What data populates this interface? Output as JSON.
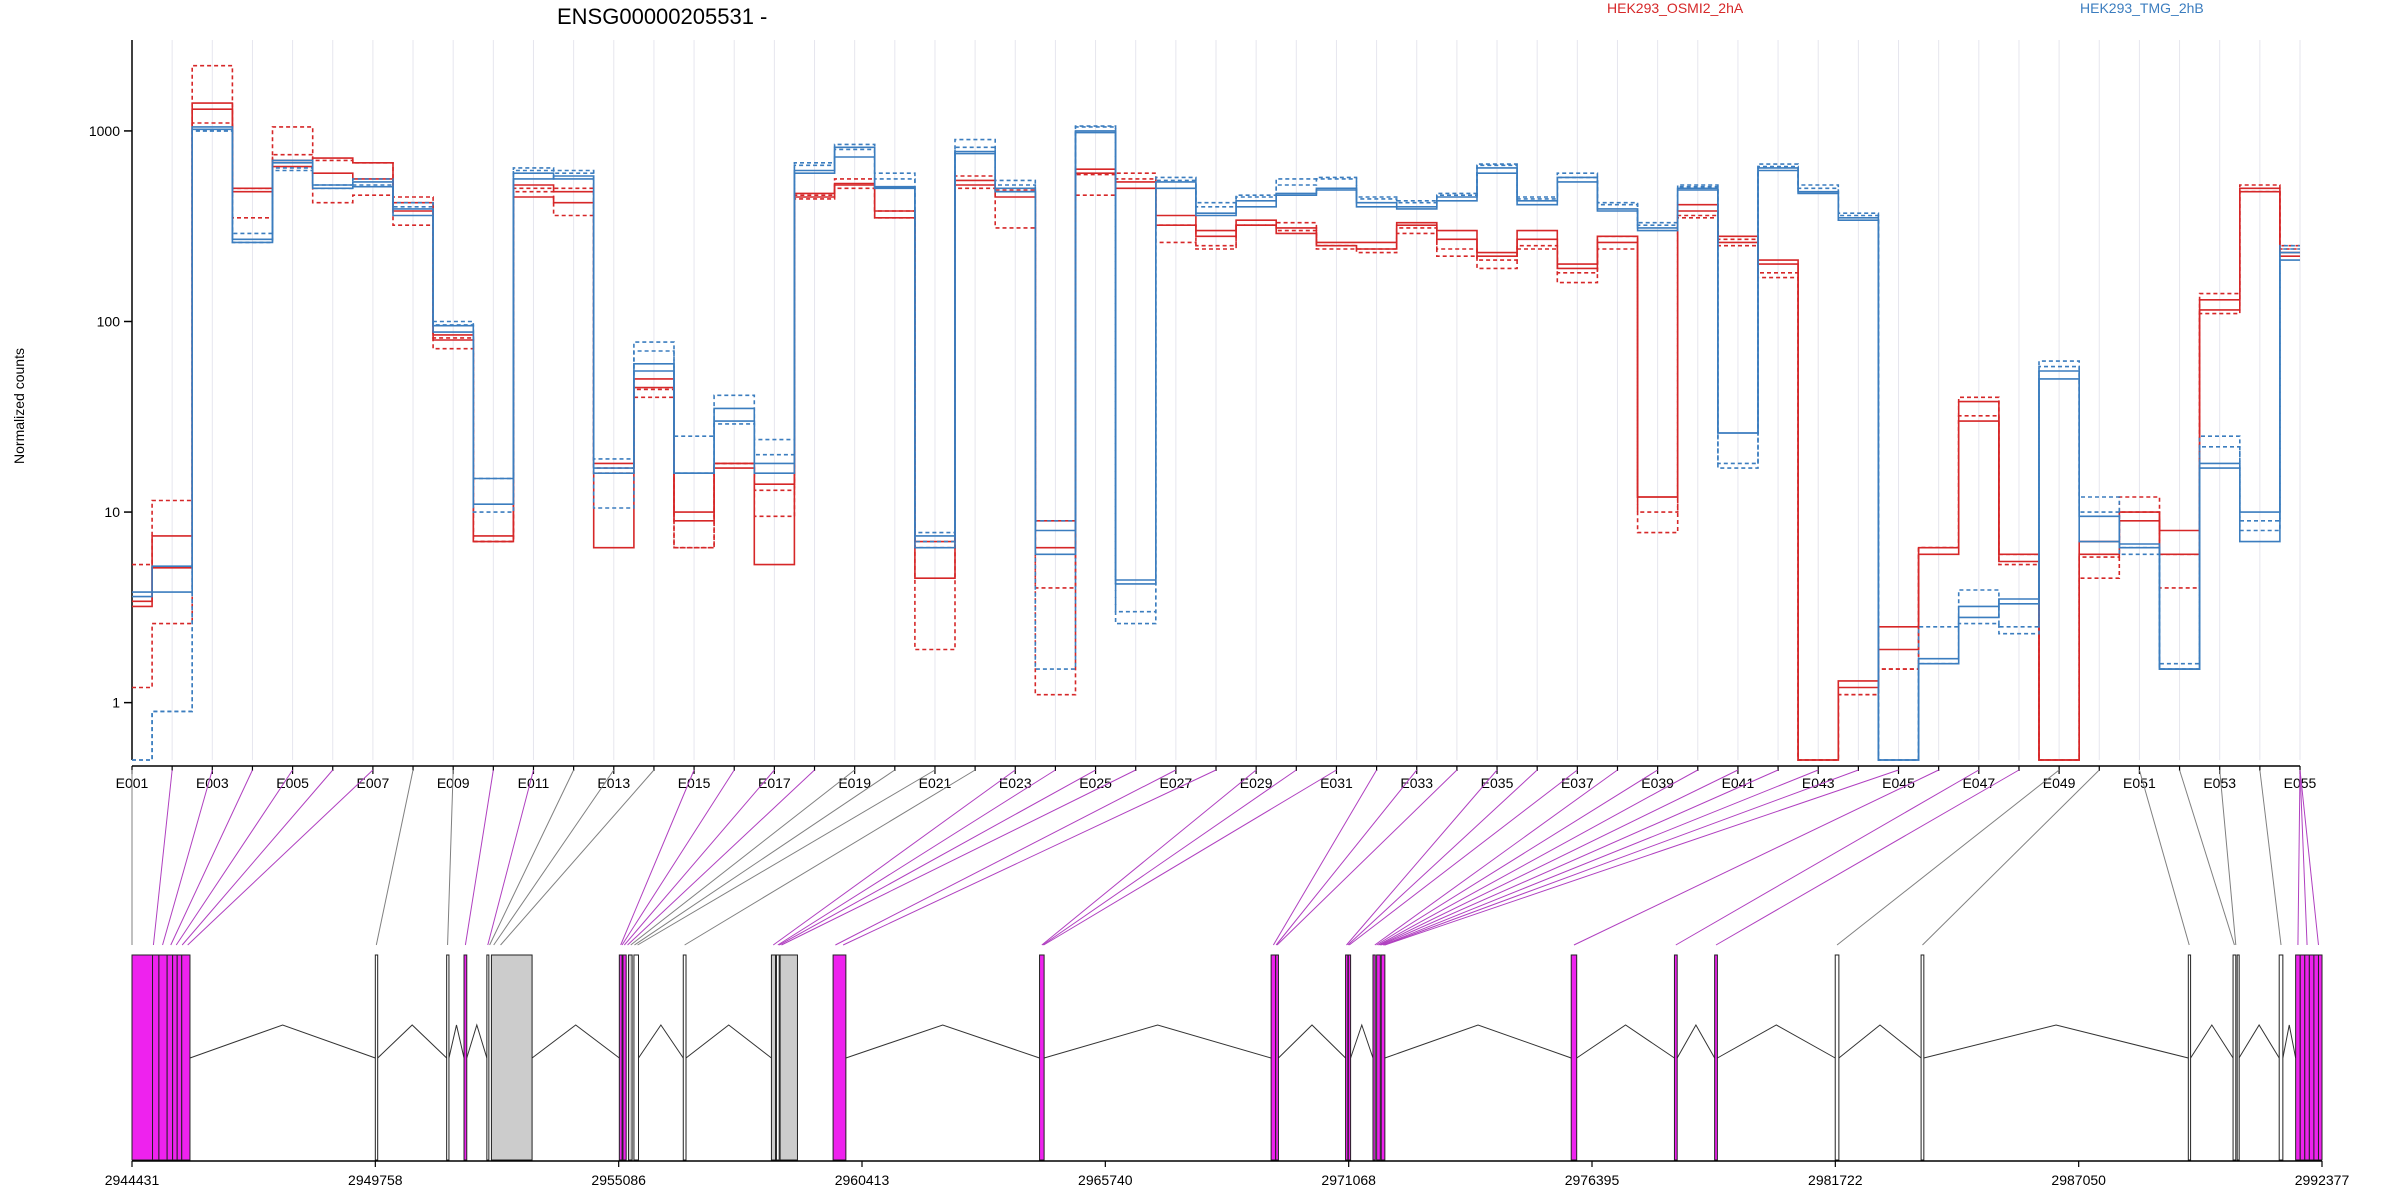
{
  "chart_data": {
    "type": "line",
    "title": "ENSG00000205531 -",
    "ylabel": "Normalized counts",
    "y_scale": "log",
    "yticks": [
      "1",
      "10",
      "100",
      "1000"
    ],
    "ylim": [
      0.5,
      3000
    ],
    "legend_placement": "top-right",
    "legend": [
      {
        "label": "HEK293_OSMI2_2hA",
        "color": "#d62728"
      },
      {
        "label": "HEK293_TMG_2hB",
        "color": "#3b7dbf"
      }
    ],
    "exon_tick_labels": [
      "E001",
      "E003",
      "E005",
      "E007",
      "E009",
      "E011",
      "E013",
      "E015",
      "E017",
      "E019",
      "E021",
      "E023",
      "E025",
      "E027",
      "E029",
      "E031",
      "E033",
      "E035",
      "E037",
      "E039",
      "E041",
      "E043",
      "E045",
      "E047",
      "E049",
      "E051",
      "E053",
      "E055"
    ],
    "genomic_tick_labels": [
      "2944431",
      "2949758",
      "2955086",
      "2960413",
      "2965740",
      "2971068",
      "2976395",
      "2981722",
      "2987050",
      "2992377"
    ],
    "genome_range": [
      2944431,
      2992377
    ],
    "series": [
      {
        "name": "HEK293_OSMI2_2hA",
        "group": "OSMI2",
        "color": "#d62728",
        "dashed": false,
        "values": [
          3.4,
          7.5,
          1300,
          500,
          700,
          720,
          680,
          420,
          85,
          7.5,
          520,
          480,
          18,
          45,
          9,
          18,
          14,
          470,
          520,
          380,
          4.5,
          550,
          450,
          9,
          600,
          540,
          360,
          300,
          320,
          290,
          260,
          260,
          330,
          300,
          230,
          300,
          190,
          280,
          12,
          380,
          280,
          210,
          0.5,
          1.2,
          2.5,
          6.5,
          30,
          6,
          0.5,
          6,
          9,
          6,
          130,
          500,
          230
        ]
      },
      {
        "name": "HEK293_OSMI2_2hA",
        "group": "OSMI2",
        "color": "#d62728",
        "dashed": true,
        "values": [
          5.3,
          11.5,
          2200,
          350,
          1050,
          700,
          680,
          450,
          82,
          7,
          480,
          360,
          16,
          40,
          6.5,
          18,
          9.5,
          440,
          500,
          350,
          1.9,
          500,
          310,
          4,
          460,
          600,
          260,
          240,
          320,
          300,
          240,
          240,
          310,
          240,
          210,
          240,
          180,
          240,
          10,
          350,
          270,
          180,
          0.5,
          1.1,
          1.5,
          6.5,
          32,
          5.3,
          0.5,
          5.8,
          10,
          4,
          140,
          480,
          250
        ]
      },
      {
        "name": "HEK293_OSMI2_2hA",
        "group": "OSMI2",
        "color": "#d62728",
        "dashed": false,
        "values": [
          3.2,
          5.1,
          1400,
          480,
          650,
          600,
          560,
          380,
          80,
          7,
          450,
          420,
          6.5,
          50,
          10,
          17,
          5.3,
          450,
          530,
          350,
          7,
          520,
          480,
          6.5,
          630,
          500,
          320,
          280,
          340,
          310,
          250,
          240,
          320,
          270,
          220,
          270,
          200,
          260,
          12,
          410,
          260,
          200,
          0.5,
          1.3,
          1.9,
          6,
          38,
          5.5,
          0.5,
          7,
          10,
          8,
          115,
          480,
          220
        ]
      },
      {
        "name": "HEK293_OSMI2_2hA",
        "group": "OSMI2",
        "color": "#d62728",
        "dashed": true,
        "values": [
          1.2,
          2.6,
          1100,
          500,
          750,
          420,
          460,
          320,
          72,
          7,
          500,
          500,
          17,
          44,
          6.5,
          18,
          13,
          460,
          560,
          380,
          6.5,
          580,
          490,
          1.1,
          590,
          560,
          320,
          250,
          320,
          330,
          250,
          230,
          290,
          220,
          190,
          250,
          160,
          280,
          7.8,
          360,
          250,
          170,
          0.5,
          1.1,
          1.5,
          6.5,
          40,
          6,
          0.5,
          4.5,
          12,
          6,
          110,
          520,
          240
        ]
      },
      {
        "name": "HEK293_TMG_2hB",
        "group": "TMG",
        "color": "#3b7dbf",
        "dashed": false,
        "values": [
          3.6,
          5.2,
          1050,
          270,
          700,
          520,
          540,
          390,
          95,
          15,
          600,
          560,
          17,
          60,
          16,
          35,
          18,
          620,
          820,
          510,
          7.5,
          780,
          500,
          8,
          1000,
          4.2,
          540,
          360,
          430,
          460,
          500,
          420,
          400,
          450,
          640,
          430,
          570,
          390,
          300,
          490,
          26,
          640,
          480,
          350,
          0.5,
          1.7,
          2.8,
          3.5,
          55,
          9.5,
          6.5,
          1.5,
          18,
          10,
          230
        ]
      },
      {
        "name": "HEK293_TMG_2hB",
        "group": "TMG",
        "color": "#3b7dbf",
        "dashed": true,
        "values": [
          0.5,
          0.9,
          1000,
          290,
          620,
          500,
          520,
          400,
          100,
          15,
          640,
          620,
          10.5,
          78,
          25,
          41,
          20,
          680,
          850,
          600,
          7.8,
          900,
          520,
          9,
          1060,
          3,
          570,
          400,
          460,
          560,
          570,
          440,
          420,
          460,
          670,
          450,
          600,
          420,
          330,
          510,
          17,
          670,
          520,
          370,
          0.5,
          2.5,
          3.9,
          2.5,
          62,
          12,
          6,
          1.5,
          25,
          8,
          250
        ]
      },
      {
        "name": "HEK293_TMG_2hB",
        "group": "TMG",
        "color": "#3b7dbf",
        "dashed": false,
        "values": [
          3.8,
          3.8,
          1020,
          260,
          680,
          500,
          510,
          360,
          88,
          11,
          560,
          580,
          16,
          55,
          16,
          30,
          16,
          600,
          730,
          500,
          6.5,
          760,
          480,
          6,
          980,
          4.4,
          500,
          370,
          400,
          470,
          490,
          400,
          390,
          430,
          600,
          410,
          540,
          380,
          310,
          500,
          26,
          620,
          470,
          340,
          0.5,
          1.6,
          3.2,
          3.3,
          50,
          7,
          6.8,
          1.5,
          17,
          7,
          210
        ]
      },
      {
        "name": "HEK293_TMG_2hB",
        "group": "TMG",
        "color": "#3b7dbf",
        "dashed": true,
        "values": [
          0.5,
          0.9,
          1000,
          260,
          640,
          520,
          560,
          420,
          96,
          10,
          620,
          600,
          19,
          70,
          16,
          29,
          24,
          660,
          800,
          560,
          7,
          820,
          550,
          1.5,
          1050,
          2.6,
          550,
          420,
          450,
          520,
          560,
          450,
          430,
          470,
          660,
          440,
          570,
          410,
          320,
          520,
          18,
          650,
          500,
          360,
          0.5,
          1.6,
          2.6,
          2.3,
          58,
          10,
          6.5,
          1.6,
          22,
          9,
          240
        ]
      }
    ],
    "gene_model": {
      "exons": [
        [
          2944431,
          2944880,
          "magenta"
        ],
        [
          2944880,
          2945020,
          "magenta"
        ],
        [
          2945020,
          2945200,
          "magenta"
        ],
        [
          2945200,
          2945320,
          "magenta"
        ],
        [
          2945320,
          2945420,
          "magenta"
        ],
        [
          2945420,
          2945520,
          "magenta"
        ],
        [
          2945520,
          2945700,
          "magenta"
        ],
        [
          2949758,
          2949810,
          "white"
        ],
        [
          2951320,
          2951370,
          "white"
        ],
        [
          2951700,
          2951760,
          "magenta"
        ],
        [
          2952200,
          2952240,
          "white"
        ],
        [
          2952300,
          2953190,
          "gray"
        ],
        [
          2955100,
          2955160,
          "magenta"
        ],
        [
          2955180,
          2955250,
          "magenta"
        ],
        [
          2955300,
          2955380,
          "gray"
        ],
        [
          2955420,
          2955520,
          "white"
        ],
        [
          2956500,
          2956560,
          "white"
        ],
        [
          2958430,
          2958520,
          "gray"
        ],
        [
          2958540,
          2958600,
          "white"
        ],
        [
          2958620,
          2959000,
          "gray"
        ],
        [
          2959780,
          2960060,
          "magenta"
        ],
        [
          2964300,
          2964400,
          "magenta"
        ],
        [
          2969370,
          2969470,
          "magenta"
        ],
        [
          2969470,
          2969530,
          "magenta"
        ],
        [
          2971000,
          2971050,
          "magenta"
        ],
        [
          2971060,
          2971110,
          "magenta"
        ],
        [
          2971600,
          2971650,
          "magenta"
        ],
        [
          2971680,
          2971760,
          "magenta"
        ],
        [
          2971780,
          2971860,
          "magenta"
        ],
        [
          2975940,
          2976060,
          "magenta"
        ],
        [
          2978200,
          2978260,
          "magenta"
        ],
        [
          2979080,
          2979140,
          "magenta"
        ],
        [
          2981720,
          2981800,
          "white"
        ],
        [
          2983600,
          2983660,
          "white"
        ],
        [
          2989450,
          2989500,
          "white"
        ],
        [
          2990430,
          2990490,
          "white"
        ],
        [
          2990520,
          2990560,
          "white"
        ],
        [
          2991440,
          2991520,
          "white"
        ],
        [
          2991800,
          2991900,
          "magenta"
        ],
        [
          2991900,
          2992000,
          "magenta"
        ],
        [
          2992000,
          2992100,
          "magenta"
        ],
        [
          2992100,
          2992200,
          "magenta"
        ],
        [
          2992200,
          2992300,
          "magenta"
        ],
        [
          2992300,
          2992377,
          "magenta"
        ]
      ],
      "introns": [
        [
          2945700,
          2949758
        ],
        [
          2949810,
          2951320
        ],
        [
          2951370,
          2951700
        ],
        [
          2951760,
          2952200
        ],
        [
          2953190,
          2955100
        ],
        [
          2955520,
          2956500
        ],
        [
          2956560,
          2958430
        ],
        [
          2960060,
          2964300
        ],
        [
          2964400,
          2969370
        ],
        [
          2969530,
          2971000
        ],
        [
          2971110,
          2971600
        ],
        [
          2971860,
          2975940
        ],
        [
          2976060,
          2978200
        ],
        [
          2978260,
          2979080
        ],
        [
          2979140,
          2981720
        ],
        [
          2981800,
          2983600
        ],
        [
          2983660,
          2989450
        ],
        [
          2989500,
          2990430
        ],
        [
          2990560,
          2991440
        ],
        [
          2991520,
          2991800
        ]
      ],
      "connector_positions": [
        2944431,
        2944900,
        2945100,
        2945280,
        2945400,
        2945530,
        2945650,
        2949780,
        2951340,
        2951730,
        2952220,
        2952260,
        2952350,
        2952500,
        2955130,
        2955160,
        2955210,
        2955280,
        2955350,
        2955430,
        2955500,
        2956530,
        2958470,
        2958570,
        2958600,
        2958650,
        2959830,
        2960000,
        2964350,
        2964370,
        2964390,
        2969420,
        2969480,
        2969500,
        2971020,
        2971050,
        2971080,
        2971640,
        2971680,
        2971720,
        2971750,
        2971780,
        2971820,
        2971840,
        2971860,
        2976000,
        2978230,
        2979110,
        2981760,
        2983630,
        2989470,
        2990460,
        2990490,
        2991480,
        2991850,
        2992050,
        2992300
      ],
      "connector_colors": [
        "gray",
        "magenta",
        "magenta",
        "magenta",
        "magenta",
        "magenta",
        "magenta",
        "gray",
        "gray",
        "magenta",
        "magenta",
        "gray",
        "gray",
        "gray",
        "magenta",
        "magenta",
        "magenta",
        "magenta",
        "gray",
        "gray",
        "gray",
        "gray",
        "magenta",
        "magenta",
        "magenta",
        "magenta",
        "magenta",
        "magenta",
        "magenta",
        "magenta",
        "magenta",
        "magenta",
        "magenta",
        "magenta",
        "magenta",
        "magenta",
        "magenta",
        "magenta",
        "magenta",
        "magenta",
        "magenta",
        "magenta",
        "magenta",
        "magenta",
        "magenta",
        "magenta",
        "magenta",
        "magenta",
        "gray",
        "gray",
        "gray",
        "gray",
        "gray",
        "gray",
        "magenta",
        "magenta",
        "magenta"
      ]
    }
  },
  "colors": {
    "osmi": "#d62728",
    "tmg": "#3b7dbf",
    "exon_magenta": "#ee22ee",
    "exon_gray": "#cccccc",
    "connector_magenta": "#b040c0",
    "connector_gray": "#808080"
  }
}
